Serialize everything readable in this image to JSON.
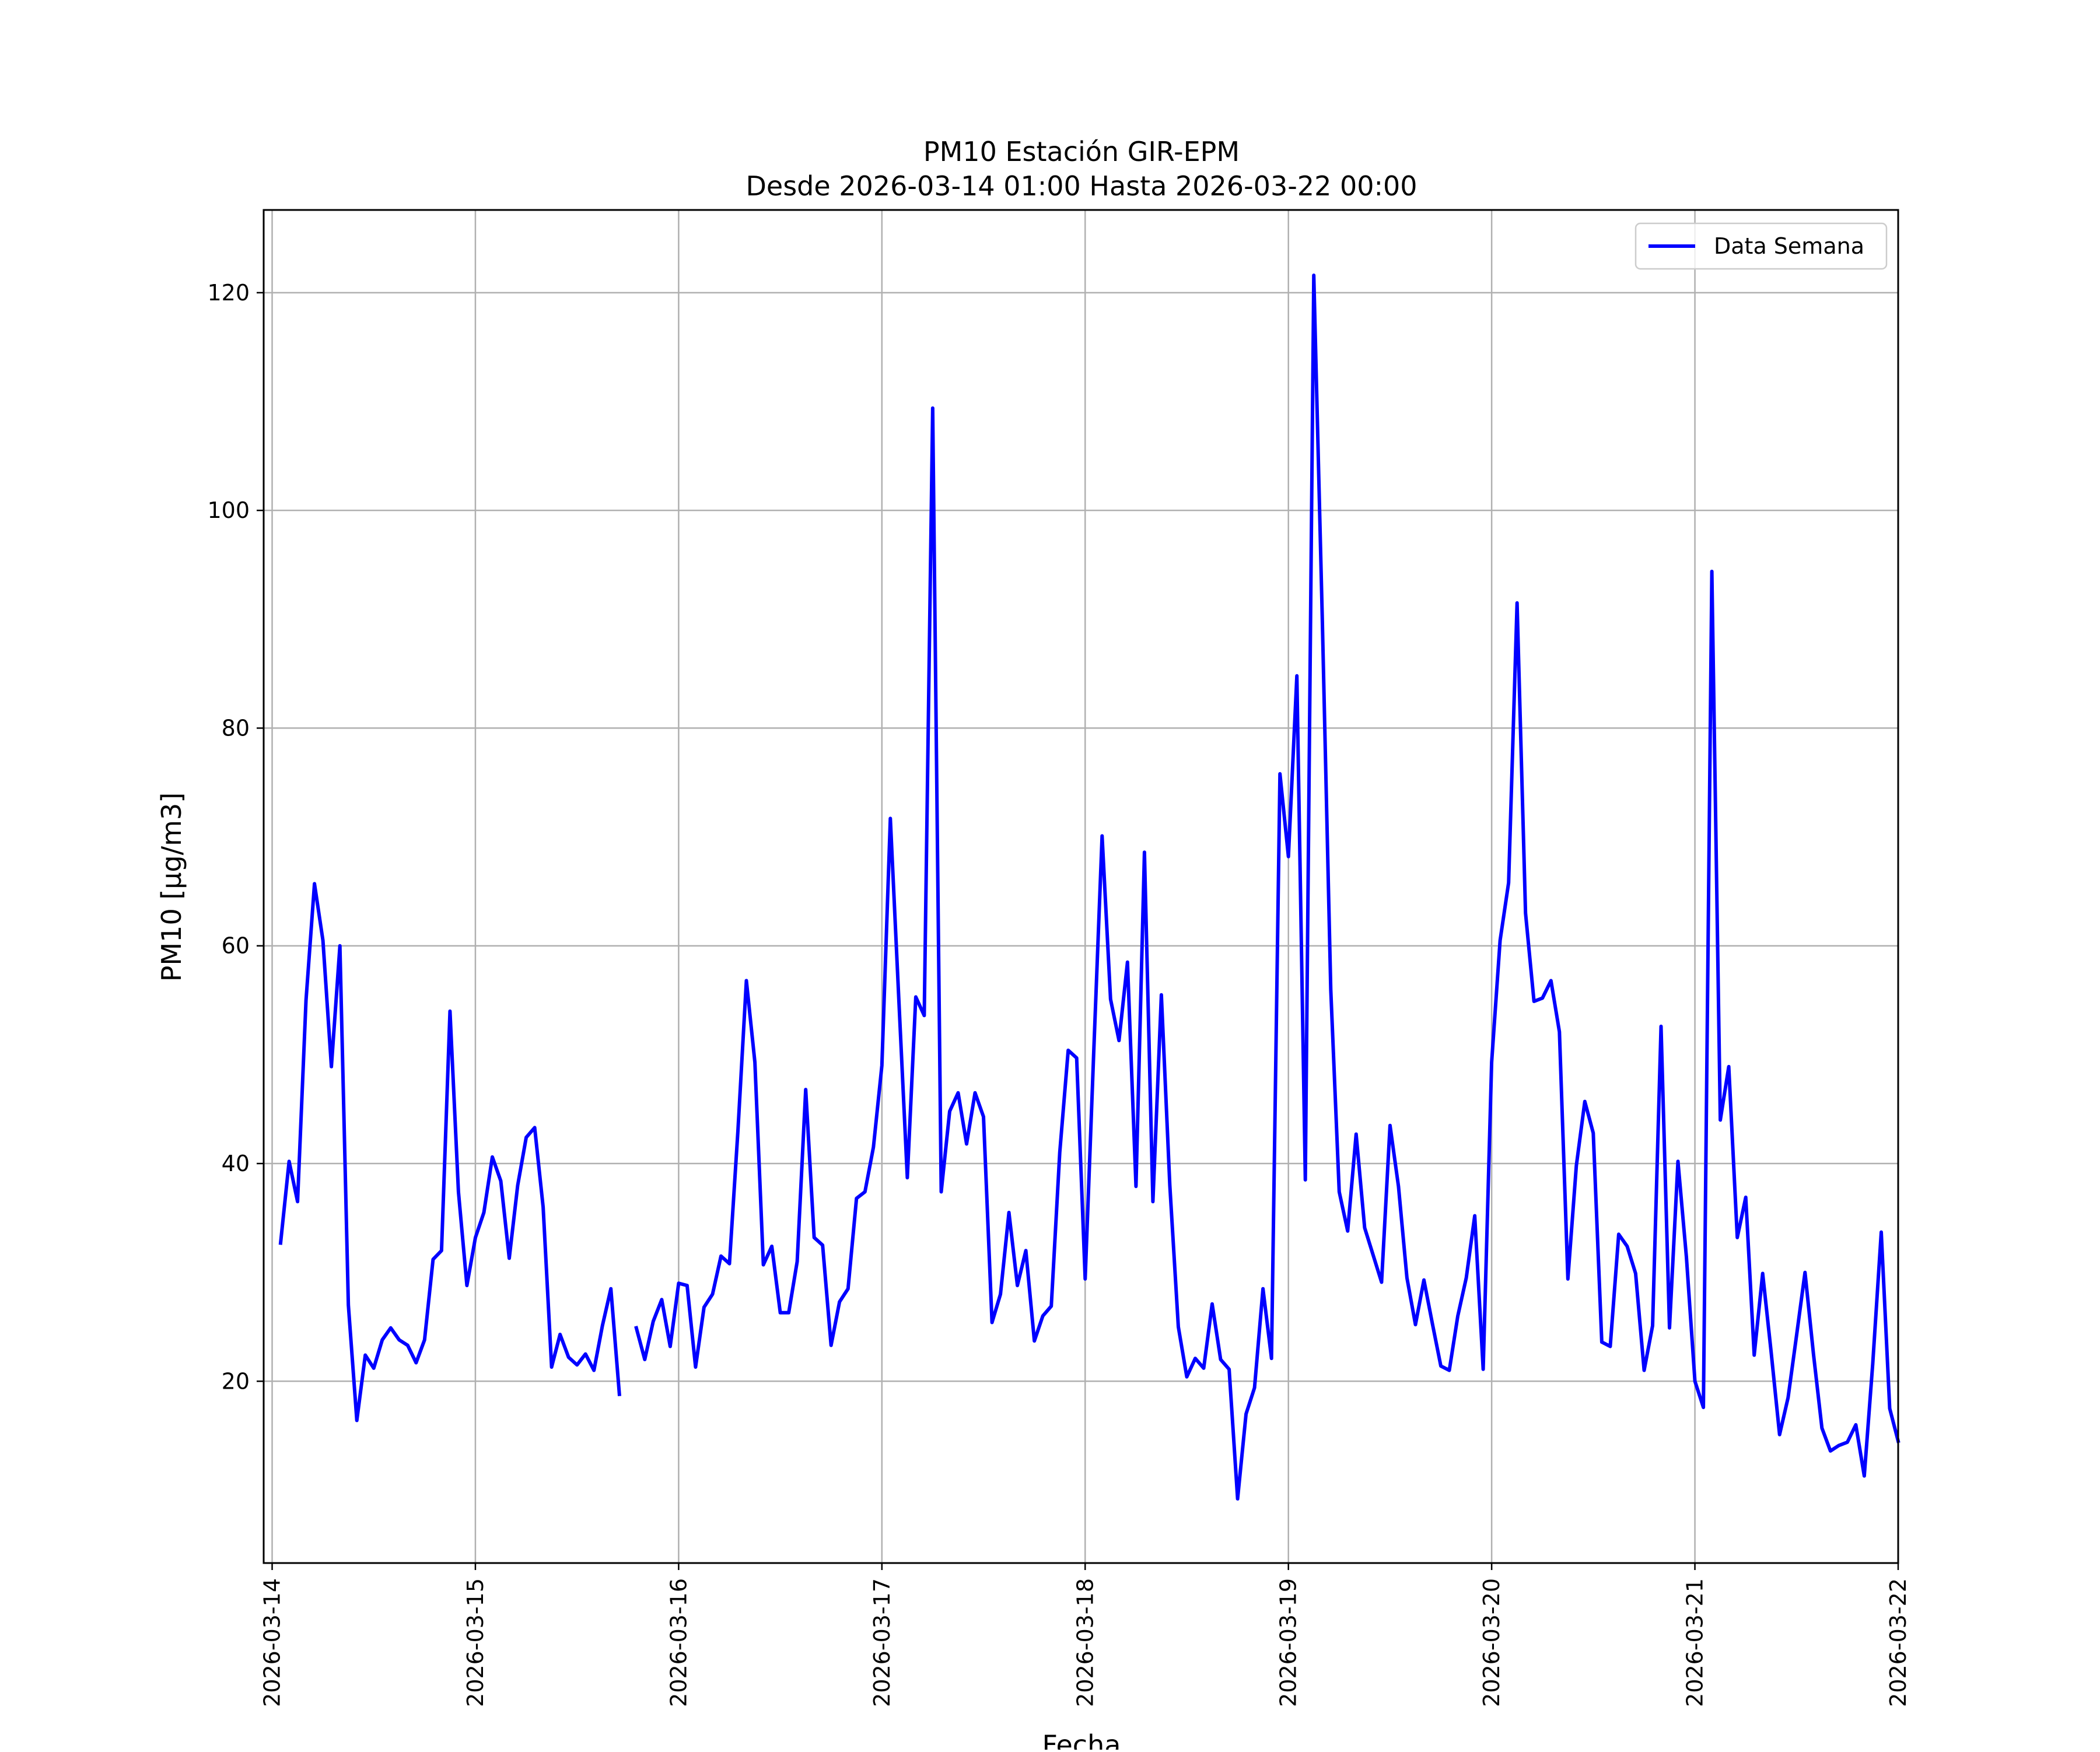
{
  "chart_data": {
    "type": "line",
    "title": "PM10 Estación GIR-EPM",
    "subtitle": "Desde 2026-03-14 01:00 Hasta 2026-03-22 00:00",
    "xlabel": "Fecha",
    "ylabel": "PM10 [μg/m3]",
    "xlim": [
      "2026-03-13 23:00",
      "2026-03-22 00:00"
    ],
    "ylim": [
      3.3,
      127.6
    ],
    "xticks": [
      "2026-03-14",
      "2026-03-15",
      "2026-03-16",
      "2026-03-17",
      "2026-03-18",
      "2026-03-19",
      "2026-03-20",
      "2026-03-21",
      "2026-03-22"
    ],
    "yticks": [
      20,
      40,
      60,
      80,
      100,
      120
    ],
    "grid": true,
    "legend_position": "upper right",
    "line_color": "#0000ff",
    "series": [
      {
        "name": "Data Semana",
        "x_start": "2026-03-14 01:00",
        "x_end": "2026-03-22 00:00",
        "x_step": "1 hour",
        "values": [
          32.7,
          40.2,
          36.5,
          55.0,
          65.7,
          60.5,
          48.9,
          60.0,
          27.0,
          16.4,
          22.4,
          21.2,
          23.8,
          24.9,
          23.8,
          23.3,
          21.7,
          23.8,
          31.2,
          32.0,
          54.0,
          37.4,
          28.8,
          33.2,
          35.5,
          40.6,
          38.4,
          31.3,
          38.0,
          42.4,
          43.3,
          36.0,
          21.3,
          24.3,
          22.2,
          21.5,
          22.5,
          21.0,
          25.1,
          28.5,
          18.8,
          null,
          24.9,
          22.0,
          25.5,
          27.5,
          23.2,
          29.0,
          28.8,
          21.3,
          26.8,
          28.0,
          31.5,
          30.8,
          43.0,
          56.8,
          49.3,
          30.7,
          32.4,
          26.3,
          26.3,
          31.0,
          46.8,
          33.2,
          32.5,
          23.3,
          27.3,
          28.5,
          36.8,
          37.4,
          41.5,
          49.0,
          71.7,
          55.0,
          38.7,
          55.3,
          53.6,
          109.4,
          37.4,
          44.8,
          46.5,
          41.8,
          46.5,
          44.3,
          25.4,
          28.0,
          35.5,
          28.8,
          32.0,
          23.7,
          26.0,
          26.9,
          41.0,
          50.4,
          49.7,
          29.4,
          50.0,
          70.1,
          55.1,
          51.3,
          58.5,
          37.9,
          68.6,
          36.5,
          55.5,
          38.0,
          25.0,
          20.4,
          22.1,
          21.2,
          27.1,
          22.0,
          21.1,
          9.2,
          17.0,
          19.4,
          28.5,
          22.1,
          75.8,
          68.2,
          84.8,
          38.5,
          121.6,
          90.0,
          56.0,
          37.4,
          33.8,
          42.7,
          34.1,
          31.6,
          29.1,
          43.5,
          37.9,
          29.5,
          25.2,
          29.3,
          25.3,
          21.4,
          21.0,
          26.0,
          29.5,
          35.2,
          21.1,
          49.3,
          60.5,
          65.8,
          91.5,
          63.0,
          54.9,
          55.2,
          56.8,
          52.1,
          29.4,
          39.8,
          45.7,
          42.8,
          23.6,
          23.2,
          33.5,
          32.4,
          29.9,
          21.0,
          25.1,
          52.6,
          24.9,
          40.2,
          31.4,
          20.0,
          17.6,
          94.4,
          44.0,
          48.9,
          33.2,
          36.9,
          22.4,
          29.9,
          22.7,
          15.1,
          18.5,
          24.2,
          30.0,
          22.5,
          15.7,
          13.6,
          14.1,
          14.4,
          16.0,
          11.3,
          21.6,
          33.7,
          17.5,
          14.5
        ]
      }
    ]
  }
}
